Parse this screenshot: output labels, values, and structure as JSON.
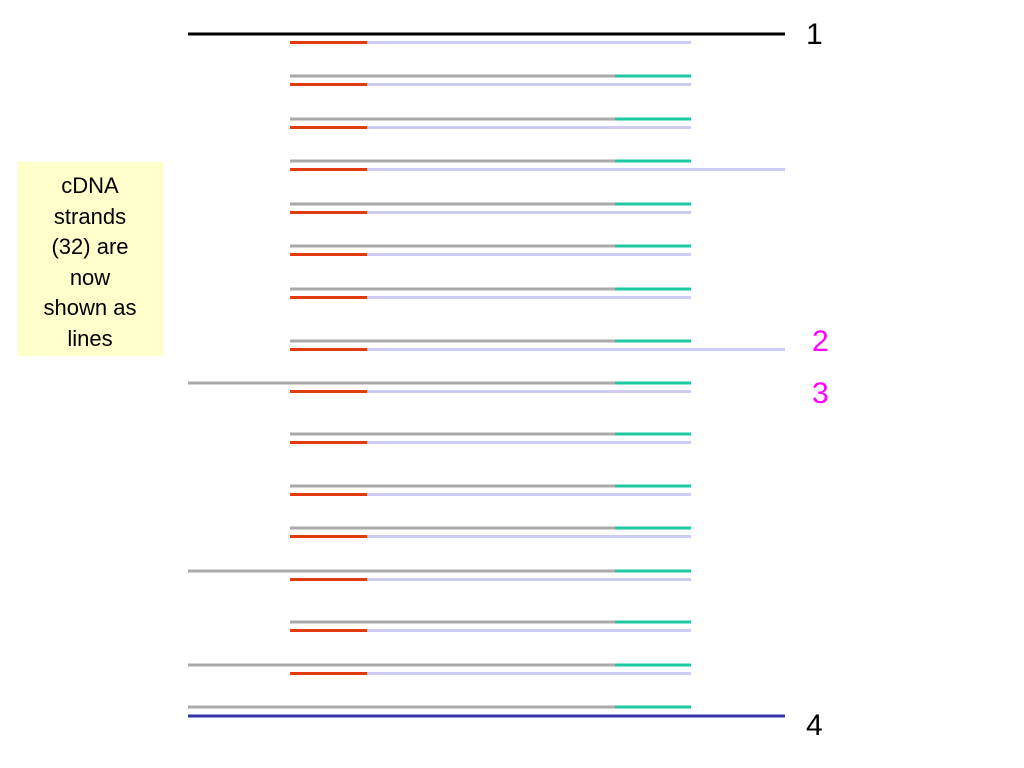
{
  "note": {
    "lines": [
      "cDNA",
      "strands",
      "(32) are",
      "now",
      "shown as",
      "lines"
    ]
  },
  "labels": [
    {
      "text": "1",
      "color": "#000000"
    },
    {
      "text": "2",
      "color": "#ff00ff"
    },
    {
      "text": "3",
      "color": "#ff00ff"
    },
    {
      "text": "4",
      "color": "#000000"
    }
  ],
  "colors": {
    "top_strand": "#000000",
    "bottom_strand": "#3333aa",
    "gray_strand": "#aaaaaa",
    "lavender_strand": "#ccccf2",
    "red_primer": "#e03c10",
    "teal_primer": "#1ec8a0"
  },
  "strand_pairs": [
    {
      "upper": "none",
      "lower": "short",
      "teal": false
    },
    {
      "upper": "short",
      "lower": "short",
      "teal": true
    },
    {
      "upper": "short",
      "lower": "short",
      "teal": true
    },
    {
      "upper": "short",
      "lower": "long",
      "teal": true
    },
    {
      "upper": "short",
      "lower": "short",
      "teal": true
    },
    {
      "upper": "short",
      "lower": "short",
      "teal": true
    },
    {
      "upper": "short",
      "lower": "short",
      "teal": true
    },
    {
      "upper": "short",
      "lower": "long",
      "teal": true
    },
    {
      "upper": "long-left",
      "lower": "short",
      "teal": true
    },
    {
      "upper": "short",
      "lower": "short",
      "teal": true
    },
    {
      "upper": "short",
      "lower": "short",
      "teal": true
    },
    {
      "upper": "short",
      "lower": "short",
      "teal": true
    },
    {
      "upper": "long-left",
      "lower": "short",
      "teal": true
    },
    {
      "upper": "short",
      "lower": "short",
      "teal": true
    },
    {
      "upper": "long-left",
      "lower": "short",
      "teal": true
    },
    {
      "upper": "long-left",
      "lower": "none",
      "teal": true
    }
  ]
}
